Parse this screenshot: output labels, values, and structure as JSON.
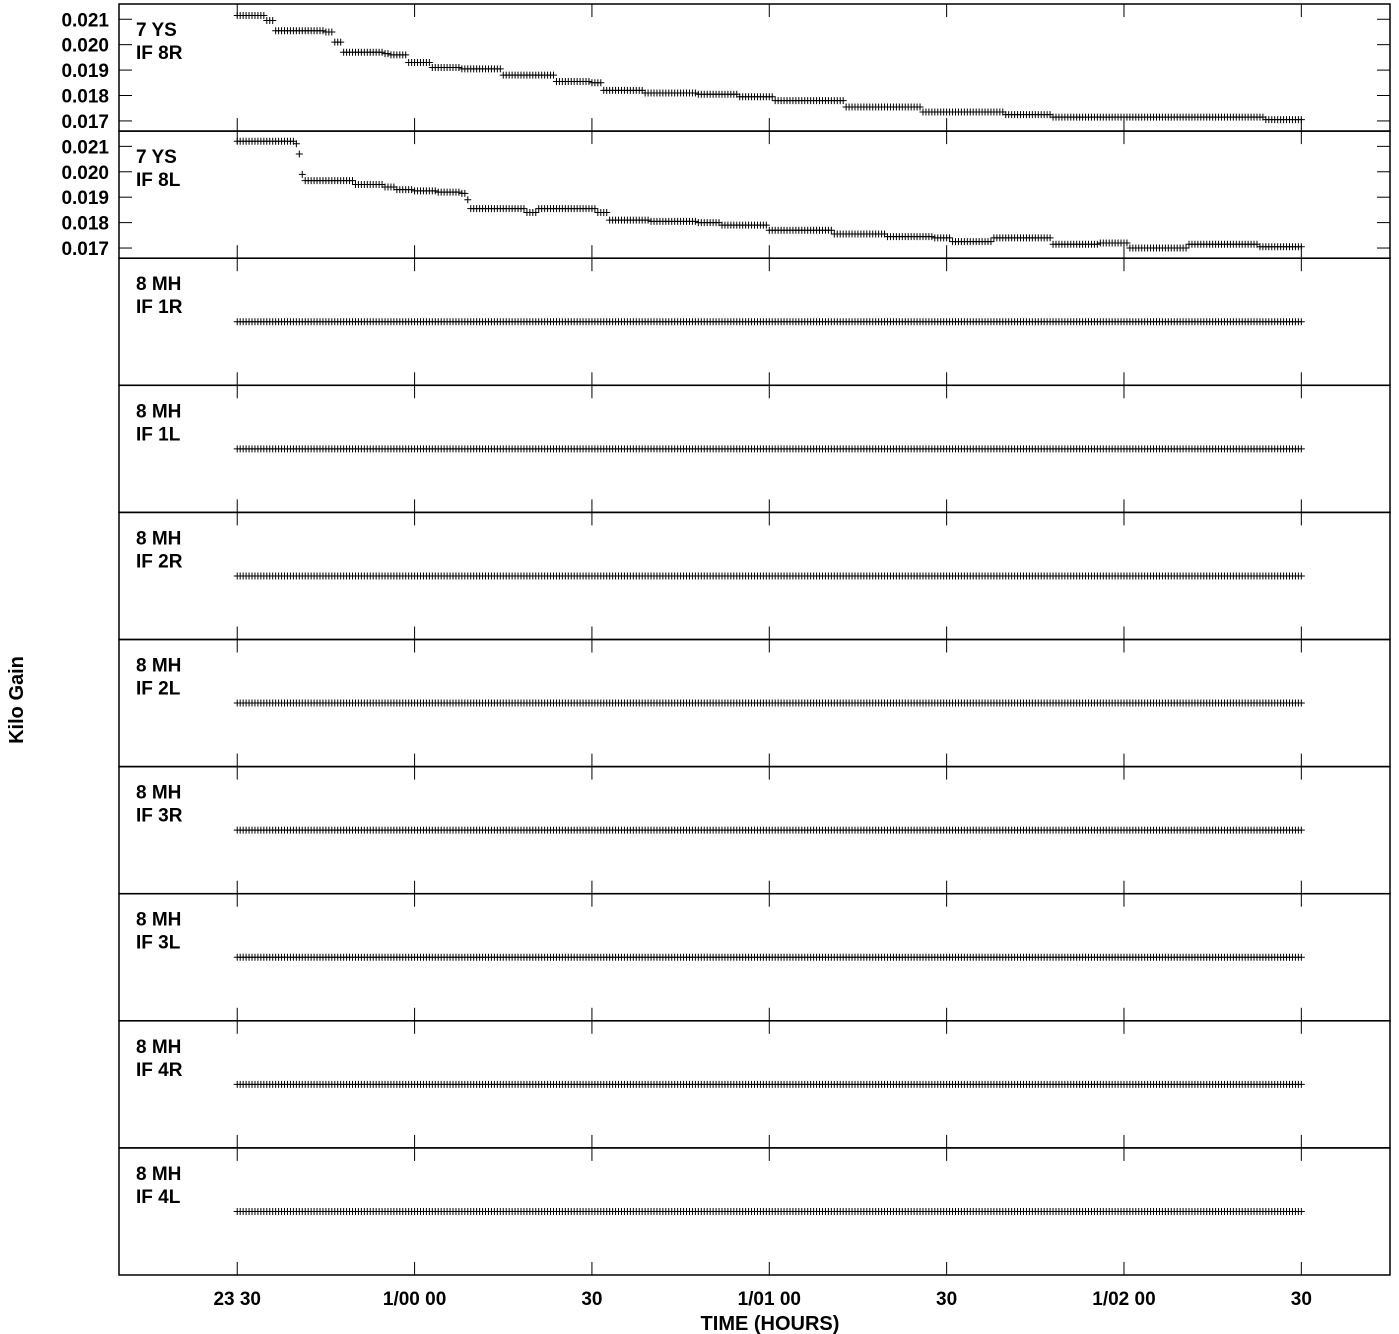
{
  "chart_data": {
    "type": "scatter",
    "xlabel": "TIME (HOURS)",
    "ylabel": "Kilo Gain",
    "marker": "+",
    "color": "#000000",
    "x_unit": "minutes relative to 1/00 00",
    "xlim": [
      -50,
      165
    ],
    "x_ticks": [
      {
        "value": -30,
        "label": "23 30"
      },
      {
        "value": 0,
        "label": "1/00 00"
      },
      {
        "value": 30,
        "label": "30"
      },
      {
        "value": 60,
        "label": "1/01 00"
      },
      {
        "value": 90,
        "label": "30"
      },
      {
        "value": 120,
        "label": "1/02 00"
      },
      {
        "value": 150,
        "label": "30"
      }
    ],
    "x_range": [
      -30,
      150
    ],
    "panels": [
      {
        "label_line1": "7 YS",
        "label_line2": "IF 8R",
        "ylim": [
          0.0166,
          0.0216
        ],
        "y_ticks": [
          "0.021",
          "0.020",
          "0.019",
          "0.018",
          "0.017"
        ],
        "y_tick_values": [
          0.021,
          0.02,
          0.019,
          0.018,
          0.017
        ],
        "steps": [
          [
            -30,
            0.02115
          ],
          [
            -25,
            0.02095
          ],
          [
            -23.5,
            0.02055
          ],
          [
            -15,
            0.0205
          ],
          [
            -13.5,
            0.0201
          ],
          [
            -12,
            0.0197
          ],
          [
            -5,
            0.01965
          ],
          [
            -4,
            0.0196
          ],
          [
            -1,
            0.0193
          ],
          [
            3,
            0.0191
          ],
          [
            8,
            0.01905
          ],
          [
            15,
            0.0188
          ],
          [
            24,
            0.01855
          ],
          [
            30,
            0.0185
          ],
          [
            32,
            0.0182
          ],
          [
            39,
            0.0181
          ],
          [
            48,
            0.01805
          ],
          [
            55,
            0.01795
          ],
          [
            61,
            0.0178
          ],
          [
            73,
            0.01755
          ],
          [
            86,
            0.01735
          ],
          [
            100,
            0.01725
          ],
          [
            108,
            0.01715
          ],
          [
            122,
            0.01715
          ],
          [
            144,
            0.01705
          ]
        ],
        "end": 150
      },
      {
        "label_line1": "7 YS",
        "label_line2": "IF 8L",
        "ylim": [
          0.0166,
          0.0216
        ],
        "y_ticks": [
          "0.021",
          "0.020",
          "0.019",
          "0.018",
          "0.017"
        ],
        "y_tick_values": [
          0.021,
          0.02,
          0.019,
          0.018,
          0.017
        ],
        "steps": [
          [
            -30,
            0.0212
          ],
          [
            -20,
            0.0211
          ],
          [
            -19.5,
            0.0207
          ],
          [
            -19,
            0.0199
          ],
          [
            -18.5,
            0.01965
          ],
          [
            -10,
            0.0195
          ],
          [
            -5,
            0.0194
          ],
          [
            -3,
            0.0193
          ],
          [
            0,
            0.01925
          ],
          [
            4,
            0.0192
          ],
          [
            8,
            0.01915
          ],
          [
            9,
            0.0189
          ],
          [
            9.5,
            0.01855
          ],
          [
            19,
            0.0184
          ],
          [
            21,
            0.01855
          ],
          [
            31,
            0.0184
          ],
          [
            33,
            0.0181
          ],
          [
            40,
            0.01805
          ],
          [
            48,
            0.018
          ],
          [
            52,
            0.0179
          ],
          [
            60,
            0.0177
          ],
          [
            71,
            0.01755
          ],
          [
            80,
            0.01745
          ],
          [
            88,
            0.0174
          ],
          [
            91,
            0.01725
          ],
          [
            98,
            0.0174
          ],
          [
            108,
            0.01715
          ],
          [
            116,
            0.0172
          ],
          [
            121,
            0.017
          ],
          [
            131,
            0.01715
          ],
          [
            143,
            0.01705
          ]
        ],
        "end": 150
      },
      {
        "label_line1": "8 MH",
        "label_line2": "IF 1R",
        "y_ticks": [],
        "constant_level": 0.5,
        "x_start": -30,
        "x_end": 150
      },
      {
        "label_line1": "8 MH",
        "label_line2": "IF 1L",
        "y_ticks": [],
        "constant_level": 0.5,
        "x_start": -30,
        "x_end": 150
      },
      {
        "label_line1": "8 MH",
        "label_line2": "IF 2R",
        "y_ticks": [],
        "constant_level": 0.5,
        "x_start": -30,
        "x_end": 150
      },
      {
        "label_line1": "8 MH",
        "label_line2": "IF 2L",
        "y_ticks": [],
        "constant_level": 0.5,
        "x_start": -30,
        "x_end": 150
      },
      {
        "label_line1": "8 MH",
        "label_line2": "IF 3R",
        "y_ticks": [],
        "constant_level": 0.5,
        "x_start": -30,
        "x_end": 150
      },
      {
        "label_line1": "8 MH",
        "label_line2": "IF 3L",
        "y_ticks": [],
        "constant_level": 0.5,
        "x_start": -30,
        "x_end": 150
      },
      {
        "label_line1": "8 MH",
        "label_line2": "IF 4R",
        "y_ticks": [],
        "constant_level": 0.5,
        "x_start": -30,
        "x_end": 150
      },
      {
        "label_line1": "8 MH",
        "label_line2": "IF 4L",
        "y_ticks": [],
        "constant_level": 0.5,
        "x_start": -30,
        "x_end": 150
      }
    ]
  }
}
